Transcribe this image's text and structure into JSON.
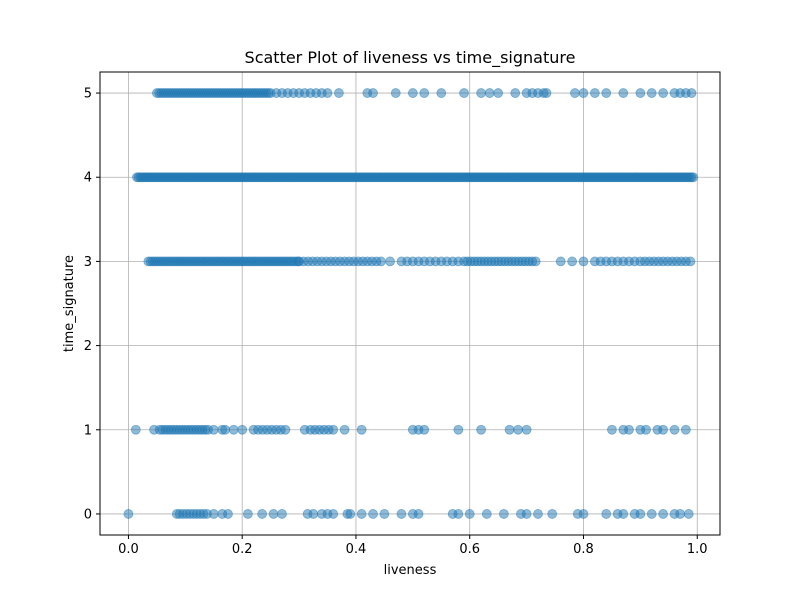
{
  "chart_data": {
    "type": "scatter",
    "title": "Scatter Plot of liveness vs time_signature",
    "xlabel": "liveness",
    "ylabel": "time_signature",
    "xlim": [
      -0.05,
      1.04
    ],
    "ylim": [
      -0.25,
      5.25
    ],
    "xticks": [
      0.0,
      0.2,
      0.4,
      0.6,
      0.8,
      1.0
    ],
    "xtick_labels": [
      "0.0",
      "0.2",
      "0.4",
      "0.6",
      "0.8",
      "1.0"
    ],
    "yticks": [
      0,
      1,
      2,
      3,
      4,
      5
    ],
    "ytick_labels": [
      "0",
      "1",
      "2",
      "3",
      "4",
      "5"
    ],
    "grid": true,
    "marker_color": "#1f77b4",
    "marker_alpha": 0.5,
    "rows": [
      {
        "y": 5,
        "segments": [
          [
            0.05,
            0.25,
            0.004
          ],
          [
            0.26,
            0.34,
            0.01
          ],
          [
            0.35,
            0.38,
            0.02
          ]
        ],
        "points": [
          0.42,
          0.43,
          0.47,
          0.5,
          0.52,
          0.55,
          0.59,
          0.62,
          0.635,
          0.65,
          0.68,
          0.7,
          0.71,
          0.72,
          0.73,
          0.735,
          0.785,
          0.8,
          0.82,
          0.84,
          0.87,
          0.9,
          0.92,
          0.94,
          0.96,
          0.97,
          0.98,
          0.99
        ]
      },
      {
        "y": 4,
        "segments": [
          [
            0.015,
            0.995,
            0.003
          ]
        ],
        "points": []
      },
      {
        "y": 3,
        "segments": [
          [
            0.035,
            0.3,
            0.004
          ],
          [
            0.3,
            0.45,
            0.008
          ],
          [
            0.48,
            0.56,
            0.01
          ],
          [
            0.59,
            0.72,
            0.006
          ],
          [
            0.82,
            0.89,
            0.01
          ],
          [
            0.9,
            0.99,
            0.008
          ]
        ],
        "points": [
          0.46,
          0.57,
          0.58,
          0.76,
          0.78,
          0.8
        ]
      },
      {
        "y": 1,
        "segments": [
          [
            0.055,
            0.14,
            0.005
          ],
          [
            0.22,
            0.28,
            0.008
          ],
          [
            0.32,
            0.365,
            0.008
          ]
        ],
        "points": [
          0.013,
          0.045,
          0.15,
          0.165,
          0.17,
          0.185,
          0.2,
          0.31,
          0.38,
          0.41,
          0.5,
          0.51,
          0.52,
          0.58,
          0.62,
          0.67,
          0.685,
          0.7,
          0.85,
          0.87,
          0.88,
          0.9,
          0.91,
          0.93,
          0.94,
          0.96,
          0.98
        ]
      },
      {
        "y": 0,
        "segments": [
          [
            0.09,
            0.14,
            0.006
          ]
        ],
        "points": [
          0.0,
          0.085,
          0.15,
          0.165,
          0.175,
          0.21,
          0.235,
          0.255,
          0.27,
          0.315,
          0.325,
          0.34,
          0.35,
          0.36,
          0.385,
          0.39,
          0.41,
          0.43,
          0.45,
          0.48,
          0.5,
          0.51,
          0.57,
          0.58,
          0.6,
          0.63,
          0.66,
          0.69,
          0.7,
          0.72,
          0.745,
          0.79,
          0.8,
          0.84,
          0.86,
          0.87,
          0.89,
          0.9,
          0.92,
          0.94,
          0.96,
          0.97,
          0.985
        ]
      }
    ]
  }
}
